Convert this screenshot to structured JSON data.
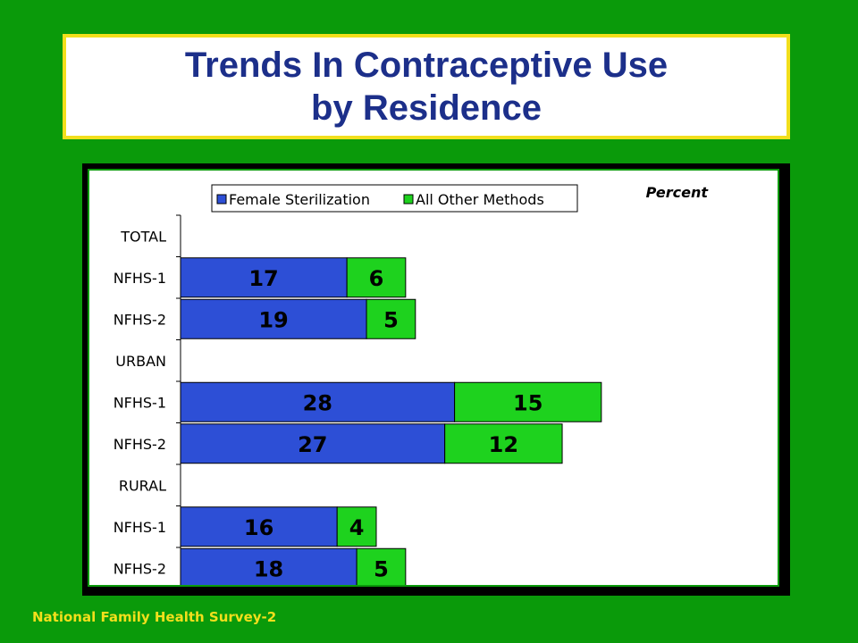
{
  "slide": {
    "title_line1": "Trends In Contraceptive Use",
    "title_line2": "by Residence",
    "footer": "National Family Health Survey-2"
  },
  "chart_data": {
    "type": "bar",
    "orientation": "horizontal",
    "stacked": true,
    "unit_label": "Percent",
    "categories": [
      "TOTAL",
      "NFHS-1",
      "NFHS-2",
      "URBAN",
      "NFHS-1",
      "NFHS-2",
      "RURAL",
      "NFHS-1",
      "NFHS-2"
    ],
    "series": [
      {
        "name": "Female Sterilization",
        "color": "#2d4fd6",
        "values": [
          null,
          17,
          19,
          null,
          28,
          27,
          null,
          16,
          18
        ]
      },
      {
        "name": "All Other Methods",
        "color": "#1ed21e",
        "values": [
          null,
          6,
          5,
          null,
          15,
          12,
          null,
          4,
          5
        ]
      }
    ],
    "xlim": [
      0,
      50
    ],
    "legend_position": "top",
    "grid": false
  }
}
